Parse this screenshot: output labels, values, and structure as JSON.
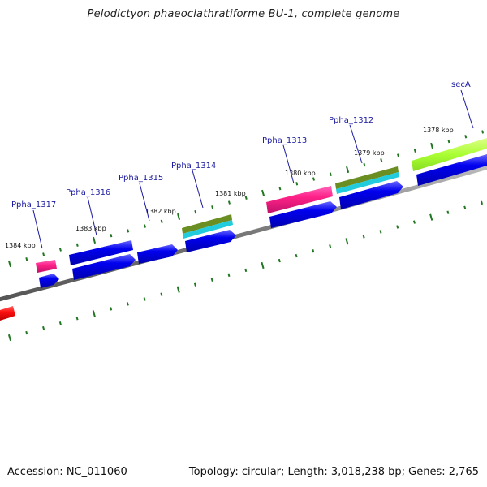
{
  "title": "Pelodictyon phaeoclathratiforme BU-1, complete genome",
  "footer": {
    "accession": "Accession: NC_011060",
    "topology": "Topology: circular; Length: 3,018,238 bp; Genes: 2,765"
  },
  "gene_labels": [
    "Ppha_1317",
    "Ppha_1316",
    "Ppha_1315",
    "Ppha_1314",
    "Ppha_1313",
    "Ppha_1312",
    "secA"
  ],
  "kbp_labels": [
    "1384 kbp",
    "1383 kbp",
    "1382 kbp",
    "1381 kbp",
    "1380 kbp",
    "1379 kbp",
    "1378 kbp"
  ],
  "colors": {
    "backbone": "#888888",
    "cds": "#0000ee",
    "pink": "#ff3399",
    "olive": "#6b8e23",
    "cyan": "#22ccdd",
    "lime": "#aaff33",
    "red": "#ff1111",
    "tick": "#227722",
    "label": "#1a1aa0"
  }
}
